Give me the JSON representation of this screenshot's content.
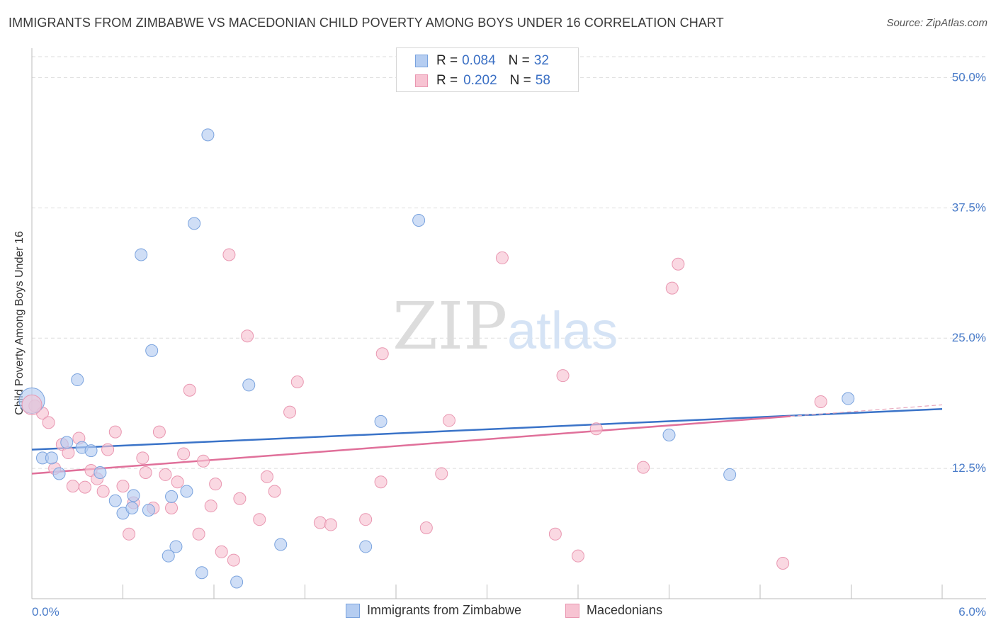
{
  "header": {
    "title": "IMMIGRANTS FROM ZIMBABWE VS MACEDONIAN CHILD POVERTY AMONG BOYS UNDER 16 CORRELATION CHART",
    "source": "Source: ZipAtlas.com"
  },
  "watermark": {
    "zip": "ZIP",
    "atlas": "atlas"
  },
  "legend": {
    "r_label": "R =",
    "n_label": "N =",
    "series": [
      {
        "name": "Immigrants from Zimbabwe",
        "r": "0.084",
        "n": "32",
        "fill": "#b5cdf1",
        "stroke": "#7aa3de"
      },
      {
        "name": "Macedonians",
        "r": "0.202",
        "n": "58",
        "fill": "#f7c3d2",
        "stroke": "#e997b1"
      }
    ]
  },
  "chart_data": {
    "type": "scatter",
    "title": "IMMIGRANTS FROM ZIMBABWE VS MACEDONIAN CHILD POVERTY AMONG BOYS UNDER 16 CORRELATION CHART",
    "xlabel": "",
    "ylabel": "Child Poverty Among Boys Under 16",
    "xlim": [
      0.0,
      6.0
    ],
    "ylim": [
      0.0,
      52.0
    ],
    "x_tick_labels": [
      "0.0%",
      "6.0%"
    ],
    "y_ticks": [
      12.5,
      25.0,
      37.5,
      50.0
    ],
    "y_tick_labels": [
      "12.5%",
      "25.0%",
      "37.5%",
      "50.0%"
    ],
    "grid": true,
    "legend_position": "top-center",
    "series": [
      {
        "name": "Immigrants from Zimbabwe",
        "color": "#3a73c8",
        "points": [
          [
            0.0,
            19.0
          ],
          [
            0.07,
            13.5
          ],
          [
            0.13,
            13.5
          ],
          [
            0.18,
            12.0
          ],
          [
            0.23,
            15.0
          ],
          [
            0.3,
            21.0
          ],
          [
            0.33,
            14.5
          ],
          [
            0.39,
            14.2
          ],
          [
            0.45,
            12.1
          ],
          [
            0.55,
            9.4
          ],
          [
            0.6,
            8.2
          ],
          [
            0.66,
            8.7
          ],
          [
            0.67,
            9.9
          ],
          [
            0.72,
            33.0
          ],
          [
            0.77,
            8.5
          ],
          [
            0.79,
            23.8
          ],
          [
            0.9,
            4.1
          ],
          [
            0.92,
            9.8
          ],
          [
            0.95,
            5.0
          ],
          [
            1.02,
            10.3
          ],
          [
            1.07,
            36.0
          ],
          [
            1.12,
            2.5
          ],
          [
            1.16,
            44.5
          ],
          [
            1.35,
            1.6
          ],
          [
            1.43,
            20.5
          ],
          [
            1.64,
            5.2
          ],
          [
            2.2,
            5.0
          ],
          [
            2.3,
            17.0
          ],
          [
            2.55,
            36.3
          ],
          [
            4.2,
            15.7
          ],
          [
            4.6,
            11.9
          ],
          [
            5.38,
            19.2
          ]
        ],
        "trend": [
          [
            0.0,
            14.3
          ],
          [
            6.0,
            18.2
          ]
        ]
      },
      {
        "name": "Macedonians",
        "color": "#e0709a",
        "points": [
          [
            0.02,
            18.5
          ],
          [
            0.07,
            17.8
          ],
          [
            0.11,
            16.9
          ],
          [
            0.15,
            12.5
          ],
          [
            0.2,
            14.8
          ],
          [
            0.24,
            14.0
          ],
          [
            0.27,
            10.8
          ],
          [
            0.31,
            15.4
          ],
          [
            0.35,
            10.7
          ],
          [
            0.39,
            12.3
          ],
          [
            0.43,
            11.5
          ],
          [
            0.47,
            10.3
          ],
          [
            0.5,
            14.3
          ],
          [
            0.55,
            16.0
          ],
          [
            0.6,
            10.8
          ],
          [
            0.64,
            6.2
          ],
          [
            0.67,
            9.2
          ],
          [
            0.73,
            13.5
          ],
          [
            0.75,
            12.1
          ],
          [
            0.8,
            8.7
          ],
          [
            0.84,
            16.0
          ],
          [
            0.88,
            11.9
          ],
          [
            0.92,
            8.7
          ],
          [
            0.96,
            11.2
          ],
          [
            1.0,
            13.9
          ],
          [
            1.04,
            20.0
          ],
          [
            1.1,
            6.2
          ],
          [
            1.13,
            13.2
          ],
          [
            1.18,
            8.9
          ],
          [
            1.21,
            11.0
          ],
          [
            1.25,
            4.5
          ],
          [
            1.3,
            33.0
          ],
          [
            1.33,
            3.7
          ],
          [
            1.37,
            9.6
          ],
          [
            1.42,
            25.2
          ],
          [
            1.5,
            7.6
          ],
          [
            1.55,
            11.7
          ],
          [
            1.6,
            10.3
          ],
          [
            1.7,
            17.9
          ],
          [
            1.75,
            20.8
          ],
          [
            1.9,
            7.3
          ],
          [
            1.97,
            7.1
          ],
          [
            2.2,
            7.6
          ],
          [
            2.3,
            11.2
          ],
          [
            2.31,
            23.5
          ],
          [
            2.6,
            6.8
          ],
          [
            2.7,
            12.0
          ],
          [
            2.75,
            17.1
          ],
          [
            3.1,
            32.7
          ],
          [
            3.45,
            6.2
          ],
          [
            3.5,
            21.4
          ],
          [
            3.6,
            4.1
          ],
          [
            3.72,
            16.3
          ],
          [
            4.03,
            12.6
          ],
          [
            4.22,
            29.8
          ],
          [
            4.26,
            32.1
          ],
          [
            4.95,
            3.4
          ],
          [
            5.2,
            18.9
          ]
        ],
        "trend": [
          [
            0.0,
            12.0
          ],
          [
            5.0,
            17.5
          ]
        ]
      }
    ]
  }
}
